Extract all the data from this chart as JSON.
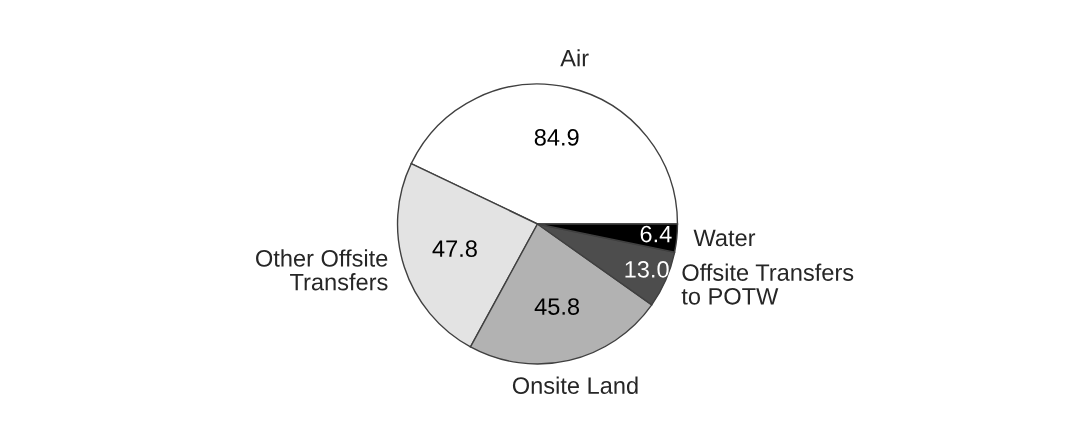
{
  "chart_data": {
    "type": "pie",
    "categories": [
      "Air",
      "Other Offsite\nTransfers",
      "Onsite Land",
      "Offsite Transfers\nto POTW",
      "Water"
    ],
    "values": [
      84.9,
      47.8,
      45.8,
      13.0,
      6.4
    ],
    "value_labels": [
      "84.9",
      "47.8",
      "45.8",
      "13.0",
      "6.4"
    ],
    "colors": [
      "#ffffff",
      "#e3e3e3",
      "#b2b2b2",
      "#4d4d4d",
      "#000000"
    ]
  }
}
